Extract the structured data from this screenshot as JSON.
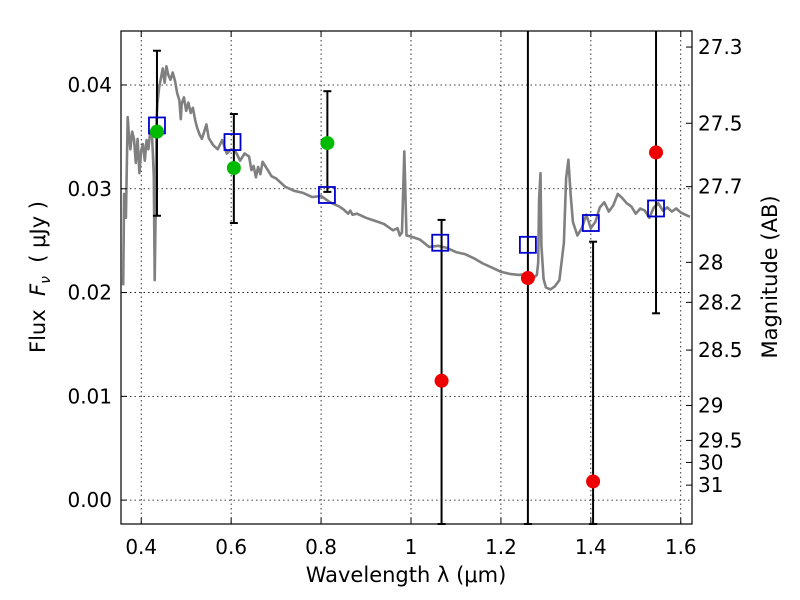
{
  "chart_data": {
    "type": "scatter",
    "xlabel": "Wavelength  λ (μm)",
    "ylabel": "Flux  F_ν  ( μJy )",
    "ylabel_parts": {
      "prefix": "Flux  ",
      "symbol": "F",
      "subscript": "ν",
      "suffix": "  ( μJy )"
    },
    "y2label": "Magnitude (AB)",
    "xlim": [
      0.355,
      1.625
    ],
    "ylim": [
      -0.0023,
      0.0452
    ],
    "grid": true,
    "x_ticks": [
      {
        "value": 0.4,
        "label": "0.4"
      },
      {
        "value": 0.6,
        "label": "0.6"
      },
      {
        "value": 0.8,
        "label": "0.8"
      },
      {
        "value": 1.0,
        "label": "1"
      },
      {
        "value": 1.2,
        "label": "1.2"
      },
      {
        "value": 1.4,
        "label": "1.4"
      },
      {
        "value": 1.6,
        "label": "1.6"
      }
    ],
    "y_ticks": [
      {
        "value": 0.0,
        "label": "0.00"
      },
      {
        "value": 0.01,
        "label": "0.01"
      },
      {
        "value": 0.02,
        "label": "0.02"
      },
      {
        "value": 0.03,
        "label": "0.03"
      },
      {
        "value": 0.04,
        "label": "0.04"
      }
    ],
    "magnitude_ticks": [
      {
        "value": 27.3,
        "label": "27.3"
      },
      {
        "value": 27.5,
        "label": "27.5"
      },
      {
        "value": 27.7,
        "label": "27.7"
      },
      {
        "value": 28.0,
        "label": "28"
      },
      {
        "value": 28.2,
        "label": "28.2"
      },
      {
        "value": 28.5,
        "label": "28.5"
      },
      {
        "value": 29.0,
        "label": "29"
      },
      {
        "value": 29.5,
        "label": "29.5"
      },
      {
        "value": 30.0,
        "label": "30"
      },
      {
        "value": 31.0,
        "label": "31"
      }
    ],
    "colors": {
      "model": "#808080",
      "model_flux": "#0000cc",
      "detection": "#00bb00",
      "nondetection": "#ee0000",
      "errorbar": "#000000"
    },
    "model_spectrum": {
      "x": [
        0.36,
        0.362,
        0.366,
        0.37,
        0.372,
        0.376,
        0.38,
        0.384,
        0.388,
        0.392,
        0.396,
        0.4,
        0.404,
        0.408,
        0.412,
        0.416,
        0.42,
        0.424,
        0.428,
        0.43,
        0.432,
        0.434,
        0.436,
        0.44,
        0.444,
        0.448,
        0.452,
        0.456,
        0.46,
        0.465,
        0.47,
        0.475,
        0.48,
        0.485,
        0.488,
        0.49,
        0.495,
        0.5,
        0.505,
        0.51,
        0.515,
        0.52,
        0.525,
        0.53,
        0.535,
        0.54,
        0.545,
        0.55,
        0.56,
        0.57,
        0.58,
        0.59,
        0.6,
        0.61,
        0.62,
        0.63,
        0.64,
        0.645,
        0.65,
        0.655,
        0.66,
        0.665,
        0.67,
        0.68,
        0.69,
        0.7,
        0.72,
        0.74,
        0.76,
        0.78,
        0.8,
        0.82,
        0.84,
        0.85,
        0.86,
        0.865,
        0.87,
        0.88,
        0.9,
        0.92,
        0.94,
        0.96,
        0.97,
        0.975,
        0.98,
        0.985,
        0.99,
        1.0,
        1.02,
        1.04,
        1.06,
        1.08,
        1.1,
        1.12,
        1.14,
        1.16,
        1.18,
        1.2,
        1.22,
        1.24,
        1.26,
        1.27,
        1.275,
        1.28,
        1.283,
        1.285,
        1.288,
        1.29,
        1.295,
        1.3,
        1.31,
        1.32,
        1.33,
        1.34,
        1.345,
        1.35,
        1.355,
        1.36,
        1.37,
        1.38,
        1.39,
        1.4,
        1.41,
        1.42,
        1.43,
        1.44,
        1.45,
        1.46,
        1.47,
        1.48,
        1.49,
        1.5,
        1.51,
        1.52,
        1.53,
        1.54,
        1.55,
        1.56,
        1.57,
        1.58,
        1.59,
        1.6,
        1.61,
        1.62
      ],
      "y": [
        0.0207,
        0.0295,
        0.0272,
        0.0369,
        0.0356,
        0.0338,
        0.0355,
        0.0348,
        0.0325,
        0.0348,
        0.0315,
        0.0337,
        0.0343,
        0.0327,
        0.0347,
        0.0338,
        0.0355,
        0.0353,
        0.0312,
        0.0212,
        0.0275,
        0.0365,
        0.0382,
        0.0398,
        0.0407,
        0.0416,
        0.0402,
        0.0418,
        0.041,
        0.0405,
        0.0412,
        0.0404,
        0.0392,
        0.0385,
        0.0367,
        0.0382,
        0.0388,
        0.0375,
        0.0383,
        0.0373,
        0.0378,
        0.0366,
        0.0358,
        0.0352,
        0.0348,
        0.0355,
        0.0362,
        0.0349,
        0.0342,
        0.0338,
        0.0347,
        0.0334,
        0.0338,
        0.0336,
        0.0327,
        0.0334,
        0.0331,
        0.0318,
        0.0322,
        0.0311,
        0.0321,
        0.0314,
        0.0326,
        0.0319,
        0.0312,
        0.031,
        0.0302,
        0.0298,
        0.0296,
        0.0292,
        0.0293,
        0.0287,
        0.0283,
        0.028,
        0.0276,
        0.0279,
        0.0275,
        0.0276,
        0.0272,
        0.0269,
        0.0266,
        0.026,
        0.0262,
        0.0255,
        0.0258,
        0.0336,
        0.0255,
        0.0254,
        0.0251,
        0.0244,
        0.0245,
        0.0243,
        0.0239,
        0.0237,
        0.0233,
        0.0228,
        0.0224,
        0.022,
        0.0218,
        0.0217,
        0.0218,
        0.0216,
        0.0215,
        0.0217,
        0.0229,
        0.029,
        0.0315,
        0.0245,
        0.0213,
        0.0205,
        0.0203,
        0.0206,
        0.0212,
        0.0248,
        0.031,
        0.0328,
        0.0295,
        0.0268,
        0.0255,
        0.0262,
        0.0275,
        0.0262,
        0.0268,
        0.0282,
        0.0287,
        0.0278,
        0.0284,
        0.0295,
        0.0291,
        0.0286,
        0.0283,
        0.0276,
        0.0281,
        0.0279,
        0.0272,
        0.0282,
        0.0286,
        0.0279,
        0.0282,
        0.0278,
        0.0281,
        0.0277,
        0.0275,
        0.0273
      ]
    },
    "model_flux": [
      {
        "x": 0.435,
        "y": 0.0361
      },
      {
        "x": 0.603,
        "y": 0.0345
      },
      {
        "x": 0.813,
        "y": 0.0294
      },
      {
        "x": 1.065,
        "y": 0.0248
      },
      {
        "x": 1.26,
        "y": 0.0246
      },
      {
        "x": 1.4,
        "y": 0.0267
      },
      {
        "x": 1.545,
        "y": 0.0281
      }
    ],
    "detections": [
      {
        "x": 0.435,
        "y": 0.0355,
        "err_low": 0.0081,
        "err_high": 0.0078
      },
      {
        "x": 0.606,
        "y": 0.032,
        "err_low": 0.0053,
        "err_high": 0.0052
      },
      {
        "x": 0.814,
        "y": 0.0344,
        "err_low": 0.0047,
        "err_high": 0.005
      }
    ],
    "non_detections": [
      {
        "x": 1.068,
        "y": 0.0115,
        "err_low": 0.0138,
        "err_high": 0.0155
      },
      {
        "x": 1.26,
        "y": 0.0214,
        "err_low": 0.0237,
        "err_high": 0.0238
      },
      {
        "x": 1.405,
        "y": 0.0018,
        "err_low": 0.0041,
        "err_high": 0.0231
      },
      {
        "x": 1.545,
        "y": 0.0335,
        "err_low": 0.0155,
        "err_high": 0.0117
      }
    ]
  }
}
